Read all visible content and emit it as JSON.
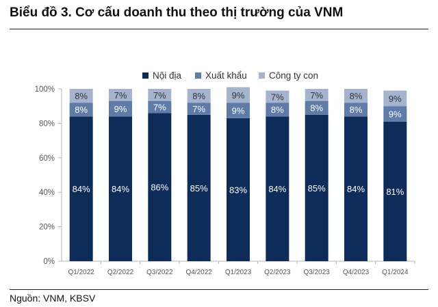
{
  "title": "Biểu đồ 3. Cơ cấu doanh thu theo thị trường của VNM",
  "source": "Nguồn: VNM, KBSV",
  "chart_data": {
    "type": "bar",
    "stacked": true,
    "categories": [
      "Q1/2022",
      "Q2/2022",
      "Q3/2022",
      "Q4/2022",
      "Q1/2023",
      "Q2/2023",
      "Q3/2023",
      "Q4/2023",
      "Q1/2024"
    ],
    "series": [
      {
        "name": "Nội địa",
        "color": "#0d2c5a",
        "values": [
          84,
          84,
          86,
          85,
          83,
          84,
          85,
          84,
          81
        ]
      },
      {
        "name": "Xuất khẩu",
        "color": "#5f7ca8",
        "values": [
          8,
          9,
          7,
          7,
          9,
          8,
          8,
          8,
          9
        ]
      },
      {
        "name": "Công ty con",
        "color": "#a4b4cf",
        "values": [
          8,
          7,
          7,
          8,
          9,
          7,
          7,
          8,
          9
        ]
      }
    ],
    "ylim": [
      0,
      100
    ],
    "yticks": [
      "0%",
      "20%",
      "40%",
      "60%",
      "80%",
      "100%"
    ],
    "ytick_values": [
      0,
      20,
      40,
      60,
      80,
      100
    ],
    "value_suffix": "%",
    "legend_position": "top",
    "grid": false
  }
}
